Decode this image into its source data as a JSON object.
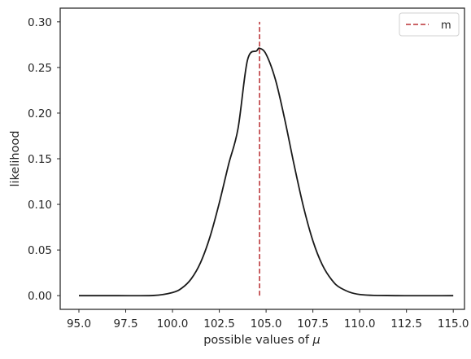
{
  "chart_data": {
    "type": "line",
    "xlabel_text": "possible values of ",
    "xlabel_symbol": "μ",
    "ylabel": "likelihood",
    "xlim": [
      94.0,
      115.6
    ],
    "ylim": [
      -0.015,
      0.315
    ],
    "x_ticks": [
      95.0,
      97.5,
      100.0,
      102.5,
      105.0,
      107.5,
      110.0,
      112.5,
      115.0
    ],
    "x_tick_labels": [
      "95.0",
      "97.5",
      "100.0",
      "102.5",
      "105.0",
      "107.5",
      "110.0",
      "112.5",
      "115.0"
    ],
    "y_ticks": [
      0.0,
      0.05,
      0.1,
      0.15,
      0.2,
      0.25,
      0.3
    ],
    "y_tick_labels": [
      "0.00",
      "0.05",
      "0.10",
      "0.15",
      "0.20",
      "0.25",
      "0.30"
    ],
    "grid": false,
    "legend_position": "upper right",
    "series": [
      {
        "kind": "curve",
        "color": "#1a1a1a",
        "style": "solid",
        "x": [
          95.0,
          97.0,
          99.0,
          100.0,
          100.5,
          101.0,
          101.5,
          102.0,
          102.5,
          103.0,
          103.5,
          104.0,
          104.5,
          104.65,
          105.0,
          105.5,
          106.0,
          106.5,
          107.0,
          107.5,
          108.0,
          108.5,
          109.0,
          110.0,
          112.0,
          115.0
        ],
        "y": [
          0.0,
          0.0,
          0.0002,
          0.0034,
          0.0083,
          0.0184,
          0.0363,
          0.0642,
          0.1016,
          0.144,
          0.183,
          0.2576,
          0.2683,
          0.271,
          0.2645,
          0.2366,
          0.1928,
          0.143,
          0.0971,
          0.0601,
          0.0339,
          0.0175,
          0.0082,
          0.0013,
          0.0,
          0.0
        ]
      },
      {
        "kind": "vline",
        "name": "m",
        "color": "#c44e52",
        "style": "dashed",
        "x": 104.65,
        "y": [
          0.0,
          0.3
        ]
      }
    ]
  }
}
